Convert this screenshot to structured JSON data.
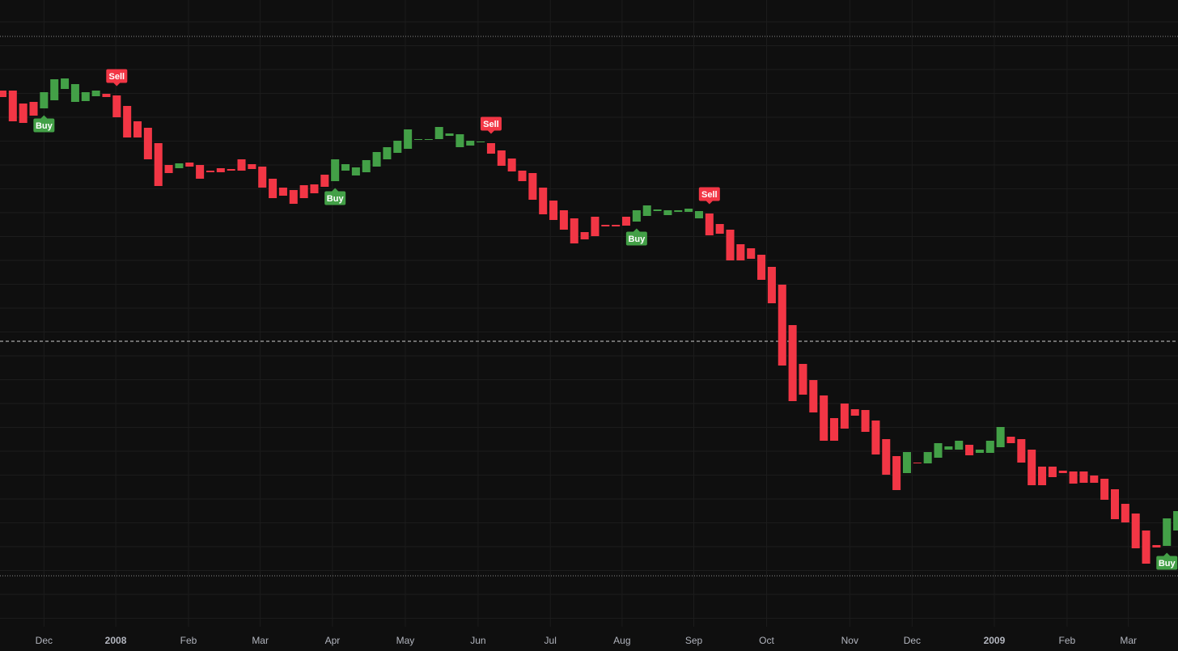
{
  "chart_data": {
    "type": "candlestick",
    "up_color": "#43a047",
    "down_color": "#f23645",
    "open": [
      688,
      688,
      672,
      674,
      666,
      676,
      690,
      674,
      675,
      681,
      684,
      682,
      669,
      650,
      642,
      623,
      596,
      592,
      599,
      596,
      589,
      592,
      591,
      603,
      597,
      594,
      579,
      568,
      565,
      571,
      572,
      584,
      576,
      589,
      583,
      587,
      594,
      603,
      611,
      616,
      627,
      627,
      628,
      632,
      618,
      620,
      624,
      623,
      614,
      604,
      589,
      586,
      568,
      552,
      540,
      530,
      513,
      532,
      522,
      522,
      532,
      526,
      533,
      539,
      534,
      538,
      538,
      530,
      536,
      523,
      516,
      498,
      493,
      485,
      470,
      448,
      398,
      350,
      330,
      311,
      283,
      301,
      294,
      293,
      280,
      257,
      236,
      215,
      228,
      227,
      234,
      244,
      244,
      250,
      240,
      240,
      247,
      260,
      257,
      244,
      223,
      223,
      218,
      217,
      217,
      212,
      208,
      195,
      177,
      165,
      144,
      126,
      125,
      144
    ],
    "close": [
      680,
      650,
      648,
      657,
      686,
      702,
      703,
      696,
      686,
      688,
      680,
      655,
      630,
      630,
      603,
      570,
      586,
      598,
      594,
      579,
      587,
      587,
      589,
      589,
      591,
      568,
      555,
      558,
      548,
      555,
      561,
      569,
      603,
      597,
      593,
      602,
      612,
      618,
      626,
      640,
      628,
      628,
      643,
      635,
      634,
      626,
      625,
      610,
      595,
      588,
      576,
      553,
      535,
      528,
      516,
      499,
      504,
      508,
      520,
      520,
      521,
      540,
      546,
      541,
      540,
      540,
      542,
      539,
      509,
      511,
      478,
      478,
      480,
      454,
      425,
      348,
      304,
      312,
      290,
      255,
      255,
      270,
      286,
      266,
      238,
      213,
      194,
      241,
      227,
      241,
      252,
      248,
      255,
      237,
      244,
      255,
      272,
      252,
      228,
      200,
      200,
      210,
      215,
      202,
      203,
      203,
      182,
      158,
      154,
      122,
      103,
      123,
      159,
      168
    ],
    "xlim": [
      -0.23,
      113.07
    ],
    "ylim": [
      25,
      800
    ],
    "xticks": [
      {
        "value": 4,
        "label": "Dec"
      },
      {
        "value": 10.9,
        "label": "2008"
      },
      {
        "value": 17.9,
        "label": "Feb"
      },
      {
        "value": 24.8,
        "label": "Mar"
      },
      {
        "value": 31.75,
        "label": "Apr"
      },
      {
        "value": 38.75,
        "label": "May"
      },
      {
        "value": 45.75,
        "label": "Jun"
      },
      {
        "value": 52.7,
        "label": "Jul"
      },
      {
        "value": 59.6,
        "label": "Aug"
      },
      {
        "value": 66.5,
        "label": "Sep"
      },
      {
        "value": 73.5,
        "label": "Oct"
      },
      {
        "value": 81.5,
        "label": "Nov"
      },
      {
        "value": 87.5,
        "label": "Dec"
      },
      {
        "value": 95.4,
        "label": "2009"
      },
      {
        "value": 102.4,
        "label": "Feb"
      },
      {
        "value": 108.3,
        "label": "Mar"
      }
    ],
    "signals": [
      {
        "index": 4,
        "label": "Buy"
      },
      {
        "index": 11,
        "label": "Sell"
      },
      {
        "index": 32,
        "label": "Buy"
      },
      {
        "index": 47,
        "label": "Sell"
      },
      {
        "index": 61,
        "label": "Buy"
      },
      {
        "index": 68,
        "label": "Sell"
      },
      {
        "index": 112,
        "label": "Buy"
      }
    ],
    "hlines": [
      {
        "value": 755,
        "style": "dotted"
      },
      {
        "value": 378,
        "style": "dashed"
      },
      {
        "value": 88,
        "style": "dotted"
      }
    ]
  }
}
